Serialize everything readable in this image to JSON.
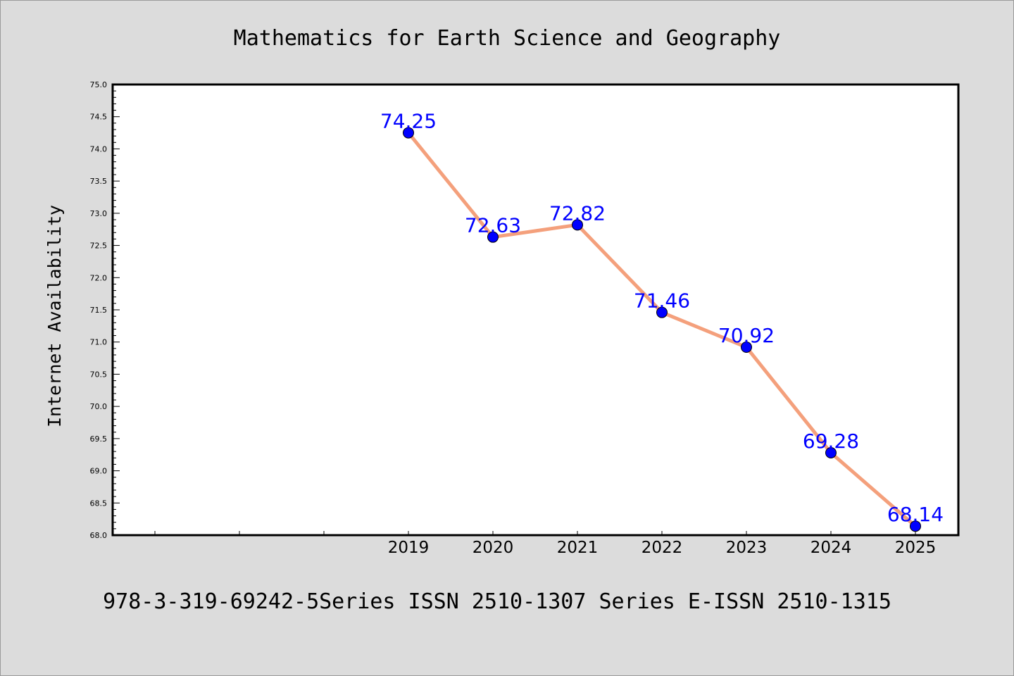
{
  "chart_data": {
    "type": "line",
    "title": "Mathematics for Earth Science and Geography",
    "ylabel": "Internet Availability",
    "xlabel": "",
    "footer": "978-3-319-69242-5Series ISSN 2510-1307 Series E-ISSN 2510-1315",
    "x_ticks": [
      "",
      "",
      "",
      "2019",
      "2020",
      "2021",
      "2022",
      "2023",
      "2024",
      "2025"
    ],
    "x": [
      "2019",
      "2020",
      "2021",
      "2022",
      "2023",
      "2024",
      "2025"
    ],
    "series": [
      {
        "values": [
          74.25,
          72.63,
          72.82,
          71.46,
          70.92,
          69.28,
          68.14
        ],
        "labels": [
          "74.25",
          "72.63",
          "72.82",
          "71.46",
          "70.92",
          "69.28",
          "68.14"
        ]
      }
    ],
    "ylim": [
      68.0,
      75.0
    ],
    "y_ticks": [
      "68.0",
      "68.5",
      "69.0",
      "69.5",
      "70.0",
      "70.5",
      "71.0",
      "71.5",
      "72.0",
      "72.5",
      "73.0",
      "73.5",
      "74.0",
      "74.5",
      "75.0"
    ],
    "grid": false,
    "legend": "none",
    "colors": {
      "line": "#f4a07c",
      "marker": "#0000ff",
      "label": "#0000ff",
      "background": "#dcdcdc",
      "plot_background": "#ffffff"
    }
  }
}
